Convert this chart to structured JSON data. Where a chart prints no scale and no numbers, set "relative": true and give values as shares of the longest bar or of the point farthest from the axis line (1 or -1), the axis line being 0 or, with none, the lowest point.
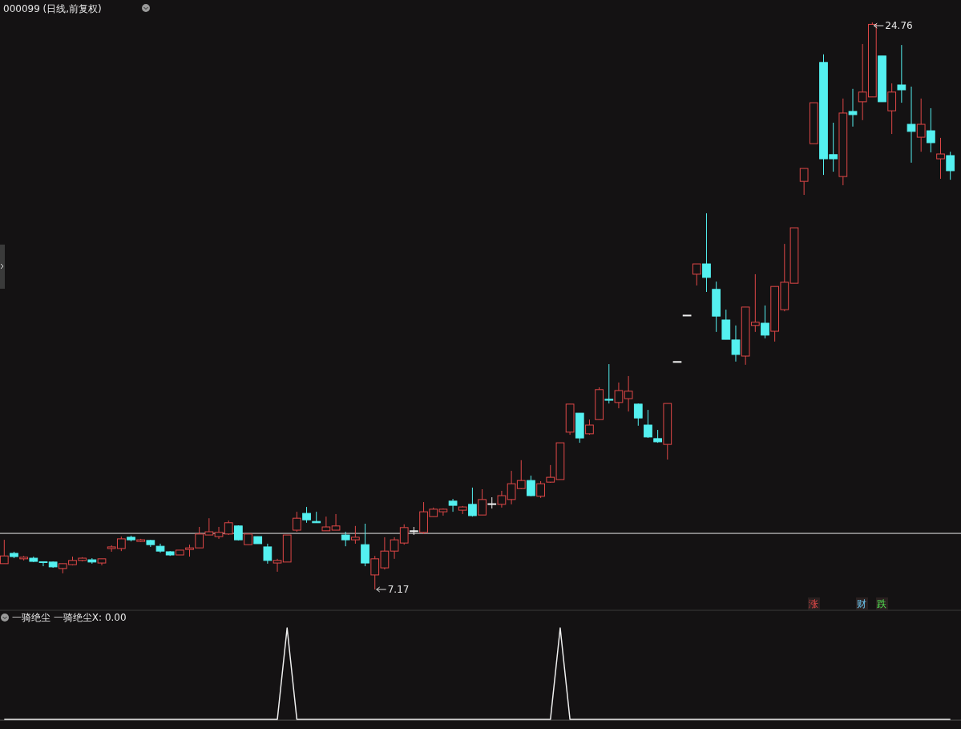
{
  "chart_data": [
    {
      "type": "candlestick",
      "title": "000099 (日线,前复权)",
      "categories": [
        null,
        null,
        null,
        null,
        null,
        null,
        null,
        null,
        null,
        null,
        null,
        null,
        null,
        null,
        null,
        null,
        null,
        null,
        null,
        null,
        null,
        null,
        null,
        null,
        null,
        null,
        null,
        null,
        null,
        null,
        null,
        null,
        null,
        null,
        null,
        null,
        null,
        null,
        null,
        null,
        null,
        null,
        null,
        null,
        null,
        null,
        null,
        null,
        null,
        null,
        null,
        null,
        null,
        null,
        null,
        null,
        null,
        null,
        null,
        null,
        null,
        null,
        null,
        null,
        null,
        null,
        null,
        null,
        null,
        null,
        null,
        null,
        null,
        null,
        null,
        null,
        null,
        null,
        null,
        null,
        null,
        null,
        null,
        null,
        null,
        null,
        null,
        null,
        null,
        null,
        null,
        null,
        null,
        null,
        null,
        null,
        null,
        null
      ],
      "ohlc": [
        [
          7.97,
          8.71,
          7.97,
          8.21
        ],
        [
          8.29,
          8.34,
          8.14,
          8.19
        ],
        [
          8.12,
          8.21,
          8.07,
          8.17
        ],
        [
          8.14,
          8.19,
          8.02,
          8.04
        ],
        [
          8.03,
          8.03,
          7.89,
          8.02
        ],
        [
          8.02,
          8.04,
          7.84,
          7.87
        ],
        [
          7.82,
          7.97,
          7.67,
          7.97
        ],
        [
          7.94,
          8.19,
          7.92,
          8.07
        ],
        [
          8.07,
          8.17,
          8.04,
          8.14
        ],
        [
          8.09,
          8.14,
          7.97,
          8.02
        ],
        [
          7.99,
          8.12,
          7.92,
          8.12
        ],
        [
          8.44,
          8.54,
          8.34,
          8.49
        ],
        [
          8.44,
          8.81,
          8.36,
          8.74
        ],
        [
          8.79,
          8.84,
          8.66,
          8.71
        ],
        [
          8.66,
          8.74,
          8.64,
          8.71
        ],
        [
          8.69,
          8.71,
          8.49,
          8.56
        ],
        [
          8.51,
          8.59,
          8.31,
          8.36
        ],
        [
          8.34,
          8.36,
          8.21,
          8.24
        ],
        [
          8.24,
          8.39,
          8.24,
          8.39
        ],
        [
          8.41,
          8.56,
          8.19,
          8.46
        ],
        [
          8.46,
          9.11,
          8.46,
          8.89
        ],
        [
          8.86,
          9.38,
          8.86,
          8.96
        ],
        [
          8.81,
          9.11,
          8.74,
          8.94
        ],
        [
          8.89,
          9.31,
          8.86,
          9.24
        ],
        [
          9.14,
          9.16,
          8.69,
          8.71
        ],
        [
          8.56,
          8.89,
          8.56,
          8.89
        ],
        [
          8.81,
          8.81,
          8.59,
          8.59
        ],
        [
          8.49,
          8.59,
          7.97,
          8.07
        ],
        [
          7.99,
          8.12,
          7.72,
          8.07
        ],
        [
          8.02,
          8.86,
          8.02,
          8.86
        ],
        [
          9.01,
          9.58,
          8.96,
          9.38
        ],
        [
          9.53,
          9.73,
          9.24,
          9.33
        ],
        [
          9.28,
          9.58,
          9.24,
          9.24
        ],
        [
          8.99,
          9.43,
          8.99,
          9.11
        ],
        [
          9.01,
          9.51,
          9.01,
          9.14
        ],
        [
          8.86,
          8.96,
          8.51,
          8.71
        ],
        [
          8.71,
          9.14,
          8.59,
          8.79
        ],
        [
          8.56,
          9.21,
          7.89,
          7.99
        ],
        [
          7.62,
          8.21,
          7.17,
          8.12
        ],
        [
          7.84,
          8.79,
          7.79,
          8.36
        ],
        [
          8.36,
          8.79,
          8.12,
          8.71
        ],
        [
          8.61,
          9.19,
          8.56,
          9.09
        ],
        [
          8.99,
          9.11,
          8.86,
          8.99
        ],
        [
          8.94,
          9.88,
          8.89,
          9.58
        ],
        [
          9.43,
          9.71,
          9.43,
          9.66
        ],
        [
          9.58,
          9.68,
          9.46,
          9.66
        ],
        [
          9.91,
          9.98,
          9.58,
          9.78
        ],
        [
          9.63,
          9.76,
          9.51,
          9.73
        ],
        [
          9.81,
          10.33,
          9.43,
          9.46
        ],
        [
          9.48,
          10.28,
          9.48,
          9.96
        ],
        [
          9.83,
          10.03,
          9.68,
          9.83
        ],
        [
          9.81,
          10.23,
          9.71,
          10.08
        ],
        [
          9.96,
          10.85,
          9.81,
          10.45
        ],
        [
          10.3,
          11.18,
          10.28,
          10.55
        ],
        [
          10.55,
          10.7,
          10.06,
          10.08
        ],
        [
          10.06,
          10.53,
          10.01,
          10.45
        ],
        [
          10.5,
          11.03,
          10.48,
          10.65
        ],
        [
          10.58,
          11.72,
          10.58,
          11.72
        ],
        [
          12.05,
          12.92,
          11.97,
          12.92
        ],
        [
          12.64,
          12.64,
          11.72,
          11.87
        ],
        [
          12.0,
          12.44,
          11.97,
          12.27
        ],
        [
          12.44,
          13.44,
          12.44,
          13.37
        ],
        [
          13.07,
          14.16,
          12.94,
          13.04
        ],
        [
          12.97,
          13.59,
          12.79,
          13.34
        ],
        [
          13.09,
          13.79,
          12.69,
          13.32
        ],
        [
          12.92,
          12.94,
          12.25,
          12.49
        ],
        [
          12.27,
          12.74,
          11.87,
          11.9
        ],
        [
          11.85,
          12.12,
          11.72,
          11.75
        ],
        [
          11.67,
          12.94,
          11.2,
          12.94
        ],
        [
          14.24,
          14.24,
          14.24,
          14.24
        ],
        [
          15.68,
          15.68,
          15.68,
          15.68
        ],
        [
          16.95,
          17.27,
          16.6,
          17.27
        ],
        [
          17.27,
          18.84,
          16.4,
          16.85
        ],
        [
          16.48,
          16.72,
          15.16,
          15.65
        ],
        [
          15.53,
          15.85,
          14.93,
          14.93
        ],
        [
          14.91,
          15.36,
          14.24,
          14.46
        ],
        [
          14.41,
          15.93,
          14.14,
          15.93
        ],
        [
          15.36,
          16.95,
          15.16,
          15.46
        ],
        [
          15.43,
          15.98,
          14.96,
          15.06
        ],
        [
          15.18,
          16.57,
          14.86,
          16.57
        ],
        [
          15.85,
          17.89,
          15.8,
          16.7
        ],
        [
          16.67,
          18.39,
          16.67,
          18.39
        ],
        [
          19.83,
          20.23,
          19.41,
          20.23
        ],
        [
          21.0,
          22.27,
          21.0,
          22.27
        ],
        [
          23.52,
          23.77,
          20.03,
          20.53
        ],
        [
          20.66,
          21.65,
          20.13,
          20.53
        ],
        [
          19.98,
          22.4,
          19.71,
          21.95
        ],
        [
          22.0,
          22.7,
          21.53,
          21.9
        ],
        [
          22.3,
          24.09,
          21.73,
          22.6
        ],
        [
          22.45,
          24.76,
          22.45,
          24.7
        ],
        [
          23.72,
          23.72,
          22.3,
          22.3
        ],
        [
          22.02,
          22.87,
          21.3,
          22.6
        ],
        [
          22.82,
          24.06,
          22.27,
          22.67
        ],
        [
          21.6,
          22.77,
          20.41,
          21.38
        ],
        [
          21.2,
          22.4,
          20.75,
          21.6
        ],
        [
          21.4,
          22.1,
          20.73,
          21.03
        ],
        [
          20.53,
          21.18,
          19.91,
          20.68
        ],
        [
          20.63,
          20.75,
          19.88,
          20.16
        ]
      ],
      "colors": [
        "#e04848",
        "#54f0f0",
        "#e04848",
        "#54f0f0",
        "#54f0f0",
        "#54f0f0",
        "#e04848",
        "#e04848",
        "#e04848",
        "#54f0f0",
        "#e04848",
        "#e04848",
        "#e04848",
        "#54f0f0",
        "#e04848",
        "#54f0f0",
        "#54f0f0",
        "#54f0f0",
        "#e04848",
        "#e04848",
        "#e04848",
        "#e04848",
        "#e04848",
        "#e04848",
        "#54f0f0",
        "#e04848",
        "#54f0f0",
        "#54f0f0",
        "#e04848",
        "#e04848",
        "#e04848",
        "#54f0f0",
        "#54f0f0",
        "#e04848",
        "#e04848",
        "#54f0f0",
        "#e04848",
        "#54f0f0",
        "#e04848",
        "#e04848",
        "#e04848",
        "#e04848",
        "#f0f0f0",
        "#e04848",
        "#e04848",
        "#e04848",
        "#54f0f0",
        "#e04848",
        "#54f0f0",
        "#e04848",
        "#f0f0f0",
        "#e04848",
        "#e04848",
        "#e04848",
        "#54f0f0",
        "#e04848",
        "#e04848",
        "#e04848",
        "#e04848",
        "#54f0f0",
        "#e04848",
        "#e04848",
        "#54f0f0",
        "#e04848",
        "#e04848",
        "#54f0f0",
        "#54f0f0",
        "#54f0f0",
        "#e04848",
        "#f0f0f0",
        "#f0f0f0",
        "#e04848",
        "#54f0f0",
        "#54f0f0",
        "#54f0f0",
        "#54f0f0",
        "#e04848",
        "#e04848",
        "#54f0f0",
        "#e04848",
        "#e04848",
        "#e04848",
        "#e04848",
        "#e04848",
        "#54f0f0",
        "#54f0f0",
        "#e04848",
        "#54f0f0",
        "#e04848",
        "#e04848",
        "#54f0f0",
        "#e04848",
        "#54f0f0",
        "#54f0f0",
        "#e04848",
        "#54f0f0",
        "#e04848",
        "#54f0f0"
      ],
      "ref_lines": [
        {
          "axis": "y",
          "value": 8.91,
          "color": "#e8e8e8"
        }
      ],
      "annotations": [
        "24.76",
        "7.17",
        "涨",
        "财",
        "跌"
      ]
    },
    {
      "type": "line",
      "title": "一骑绝尘  一骑绝尘X: 0.00",
      "relative": true,
      "categories": [
        null,
        null,
        null,
        null,
        null,
        null,
        null,
        null,
        null,
        null,
        null,
        null,
        null,
        null,
        null,
        null,
        null,
        null,
        null,
        null,
        null,
        null,
        null,
        null,
        null,
        null,
        null,
        null,
        null,
        null,
        null,
        null,
        null,
        null,
        null,
        null,
        null,
        null,
        null,
        null,
        null,
        null,
        null,
        null,
        null,
        null,
        null,
        null,
        null,
        null,
        null,
        null,
        null,
        null,
        null,
        null,
        null,
        null,
        null,
        null,
        null,
        null,
        null,
        null,
        null,
        null,
        null,
        null,
        null,
        null,
        null,
        null,
        null,
        null,
        null,
        null,
        null,
        null,
        null,
        null,
        null,
        null,
        null,
        null,
        null,
        null,
        null,
        null,
        null,
        null,
        null,
        null,
        null,
        null,
        null,
        null,
        null,
        null
      ],
      "series": [
        {
          "color": "#f0f0f0",
          "values": [
            0,
            0,
            0,
            0,
            0,
            0,
            0,
            0,
            0,
            0,
            0,
            0,
            0,
            0,
            0,
            0,
            0,
            0,
            0,
            0,
            0,
            0,
            0,
            0,
            0,
            0,
            0,
            0,
            0,
            1,
            0,
            0,
            0,
            0,
            0,
            0,
            0,
            0,
            0,
            0,
            0,
            0,
            0,
            0,
            0,
            0,
            0,
            0,
            0,
            0,
            0,
            0,
            0,
            0,
            0,
            0,
            0,
            1,
            0,
            0,
            0,
            0,
            0,
            0,
            0,
            0,
            0,
            0,
            0,
            0,
            0,
            0,
            0,
            0,
            0,
            0,
            0,
            0,
            0,
            0,
            0,
            0,
            0,
            0,
            0,
            0,
            0,
            0,
            0,
            0,
            0,
            0,
            0,
            0,
            0,
            0,
            0,
            0
          ]
        }
      ]
    }
  ]
}
